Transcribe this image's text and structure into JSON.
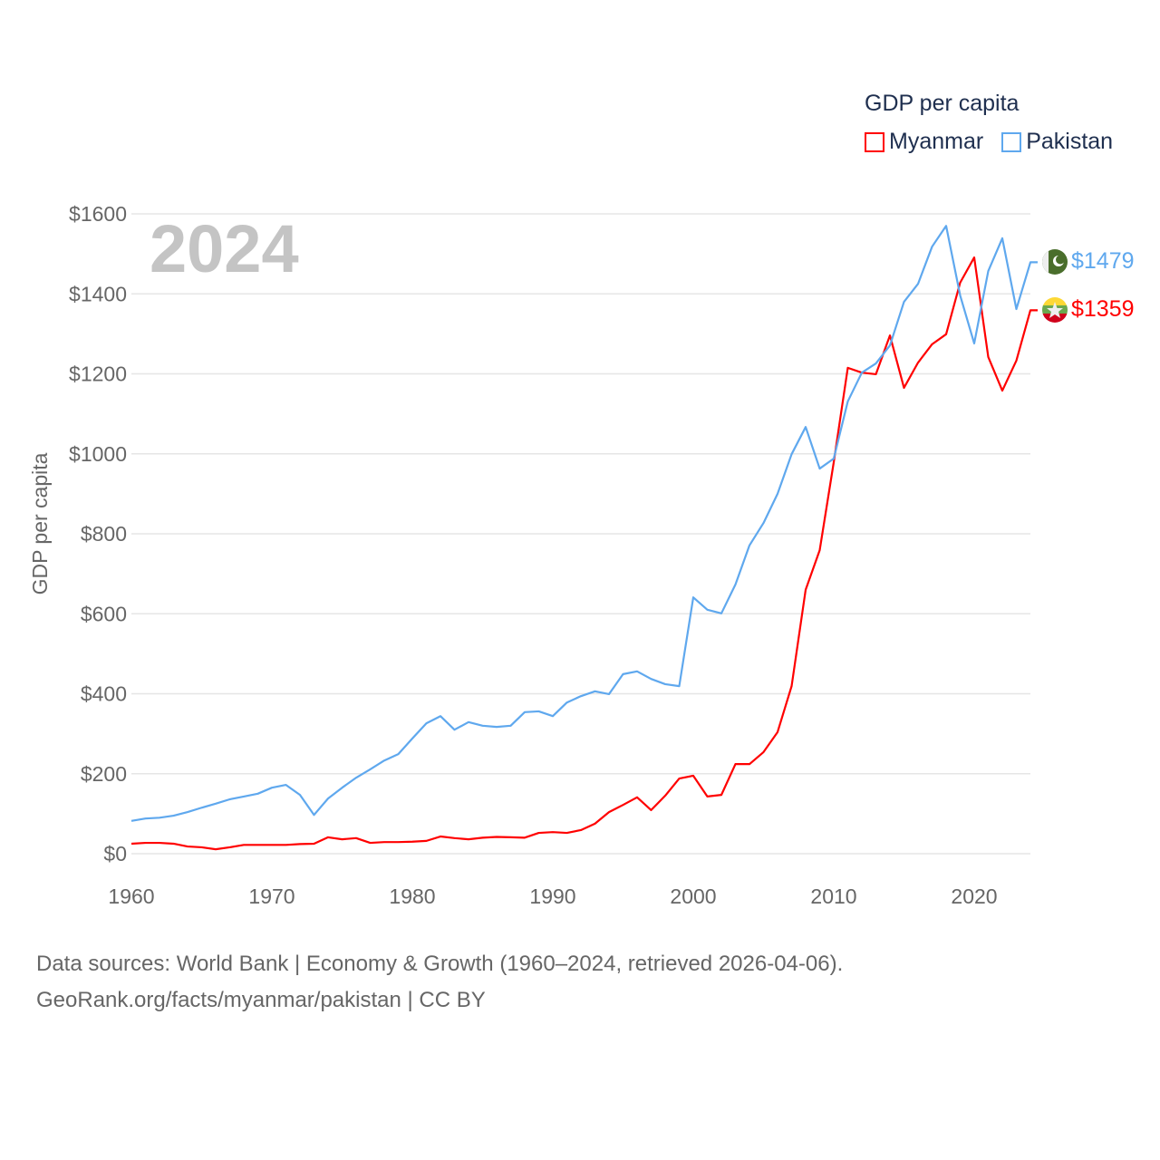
{
  "chart_data": {
    "type": "line",
    "title": "GDP per capita",
    "year_label": "2024",
    "xlabel": "",
    "ylabel": "GDP per capita",
    "xlim": [
      1960,
      2024
    ],
    "ylim": [
      0,
      1600
    ],
    "x_ticks": [
      1960,
      1970,
      1980,
      1990,
      2000,
      2010,
      2020
    ],
    "x_tick_labels": [
      "1960",
      "1970",
      "1980",
      "1990",
      "2000",
      "2010",
      "2020"
    ],
    "y_ticks": [
      0,
      200,
      400,
      600,
      800,
      1000,
      1200,
      1400,
      1600
    ],
    "y_tick_labels": [
      "$0",
      "$200",
      "$400",
      "$600",
      "$800",
      "$1000",
      "$1200",
      "$1400",
      "$1600"
    ],
    "grid": true,
    "legend_position": "top-right",
    "x_start": 1960,
    "series": [
      {
        "name": "Myanmar",
        "color": "#ff0000",
        "end_label": "$1359",
        "flag": "myanmar-flag",
        "values": [
          25,
          27,
          27,
          25,
          18,
          16,
          11,
          16,
          22,
          22,
          22,
          22,
          24,
          25,
          41,
          36,
          39,
          27,
          29,
          29,
          30,
          32,
          43,
          39,
          36,
          40,
          42,
          41,
          40,
          52,
          54,
          52,
          59,
          75,
          104,
          122,
          141,
          109,
          145,
          188,
          195,
          143,
          147,
          224,
          224,
          254,
          304,
          419,
          660,
          759,
          979,
          1215,
          1203,
          1199,
          1296,
          1165,
          1228,
          1274,
          1299,
          1428,
          1491,
          1242,
          1158,
          1233,
          1359
        ]
      },
      {
        "name": "Pakistan",
        "color": "#5fa8ee",
        "end_label": "$1479",
        "flag": "pakistan-flag",
        "values": [
          82,
          88,
          90,
          95,
          104,
          115,
          125,
          136,
          143,
          150,
          165,
          172,
          147,
          97,
          138,
          165,
          190,
          211,
          233,
          249,
          288,
          326,
          344,
          310,
          329,
          320,
          317,
          320,
          354,
          356,
          344,
          378,
          394,
          406,
          399,
          449,
          456,
          437,
          424,
          419,
          641,
          610,
          601,
          673,
          771,
          827,
          900,
          999,
          1067,
          963,
          988,
          1131,
          1203,
          1226,
          1271,
          1380,
          1425,
          1518,
          1570,
          1396,
          1276,
          1457,
          1539,
          1362,
          1479
        ]
      }
    ]
  },
  "footer": {
    "line1": "Data sources: World Bank | Economy & Growth (1960–2024, retrieved 2026-04-06).",
    "line2": "GeoRank.org/facts/myanmar/pakistan | CC BY"
  }
}
